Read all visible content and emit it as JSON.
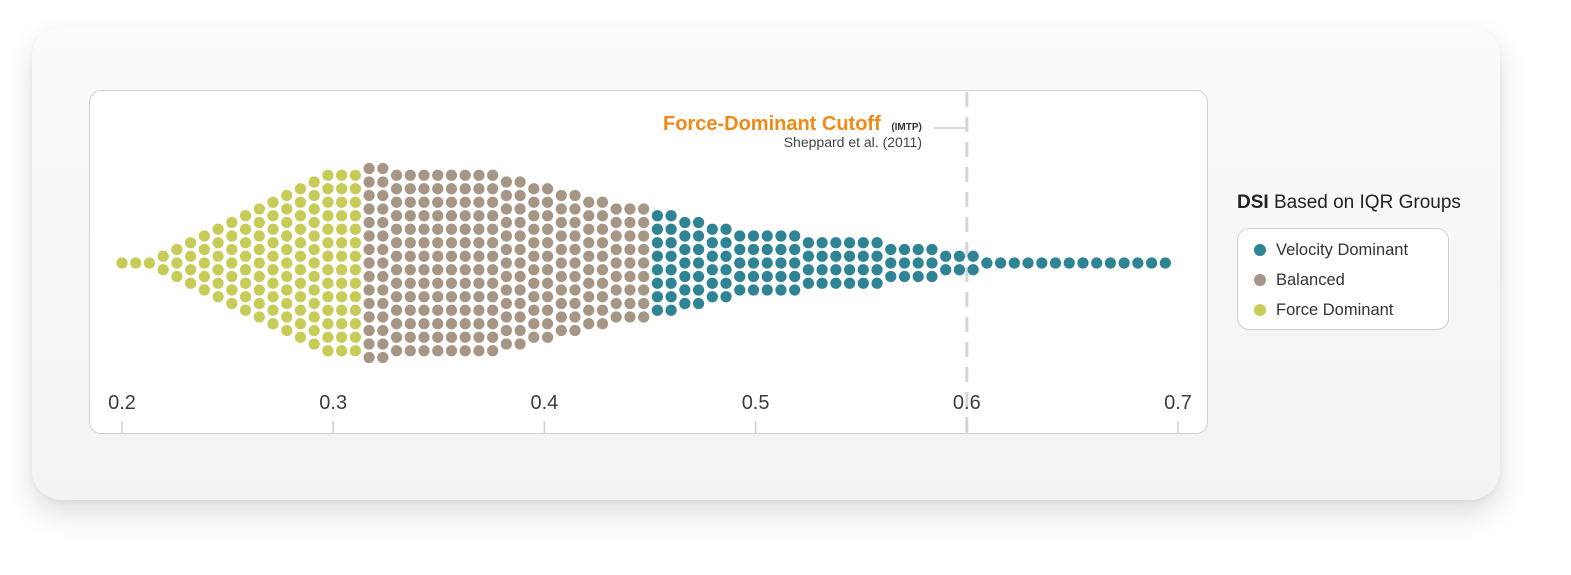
{
  "legend": {
    "title_bold": "DSI",
    "title_rest": " Based on IQR Groups",
    "items": [
      {
        "label": "Velocity Dominant",
        "color": "#2e8394"
      },
      {
        "label": "Balanced",
        "color": "#a69686"
      },
      {
        "label": "Force Dominant",
        "color": "#c7cc58"
      }
    ]
  },
  "annotation": {
    "title": "Force-Dominant Cutoff",
    "title_suffix": "(IMTP)",
    "subtitle": "Sheppard et al. (2011)"
  },
  "chart_data": {
    "type": "scatter",
    "subtype": "beeswarm",
    "x_axis": {
      "ticks": [
        "0.2",
        "0.3",
        "0.4",
        "0.5",
        "0.6",
        "0.7"
      ],
      "tick_values": [
        0.2,
        0.3,
        0.4,
        0.5,
        0.6,
        0.7
      ],
      "xlim": [
        0.2,
        0.7
      ]
    },
    "reference_line": {
      "x": 0.6,
      "style": "dashed"
    },
    "bin_width": 0.0065,
    "column_x": [
      0.2,
      0.2065,
      0.213,
      0.2195,
      0.226,
      0.2325,
      0.239,
      0.2455,
      0.252,
      0.2585,
      0.265,
      0.2715,
      0.278,
      0.2845,
      0.291,
      0.2975,
      0.304,
      0.3105,
      0.317,
      0.3235,
      0.33,
      0.3365,
      0.343,
      0.3495,
      0.356,
      0.3625,
      0.369,
      0.3755,
      0.382,
      0.3885,
      0.395,
      0.4015,
      0.408,
      0.4145,
      0.421,
      0.4275,
      0.434,
      0.4405,
      0.447,
      0.4535,
      0.46,
      0.4665,
      0.473,
      0.4795,
      0.486,
      0.4925,
      0.499,
      0.5055,
      0.512,
      0.5185,
      0.525,
      0.5315,
      0.538,
      0.5445,
      0.551,
      0.5575,
      0.564,
      0.5705,
      0.577,
      0.5835,
      0.59,
      0.5965,
      0.603,
      0.6095,
      0.616,
      0.6225,
      0.629,
      0.6355,
      0.642,
      0.6485,
      0.655,
      0.6615,
      0.668,
      0.6745,
      0.681,
      0.6875,
      0.694
    ],
    "column_counts": [
      1,
      1,
      1,
      2,
      3,
      4,
      5,
      6,
      7,
      8,
      9,
      10,
      11,
      12,
      13,
      14,
      14,
      14,
      15,
      15,
      14,
      14,
      14,
      14,
      14,
      14,
      14,
      14,
      13,
      13,
      12,
      12,
      11,
      11,
      10,
      10,
      9,
      9,
      9,
      8,
      8,
      7,
      7,
      6,
      6,
      5,
      5,
      5,
      5,
      5,
      4,
      4,
      4,
      4,
      4,
      4,
      3,
      3,
      3,
      3,
      2,
      2,
      2,
      1,
      1,
      1,
      1,
      1,
      1,
      1,
      1,
      1,
      1,
      1,
      1,
      1,
      1
    ],
    "series": [
      {
        "name": "Force Dominant",
        "color": "#c7cc58",
        "x_range": [
          0.2,
          0.313
        ]
      },
      {
        "name": "Balanced",
        "color": "#a69686",
        "x_range": [
          0.313,
          0.4505
        ]
      },
      {
        "name": "Velocity Dominant",
        "color": "#2e8394",
        "x_range": [
          0.4505,
          0.7
        ]
      }
    ]
  }
}
